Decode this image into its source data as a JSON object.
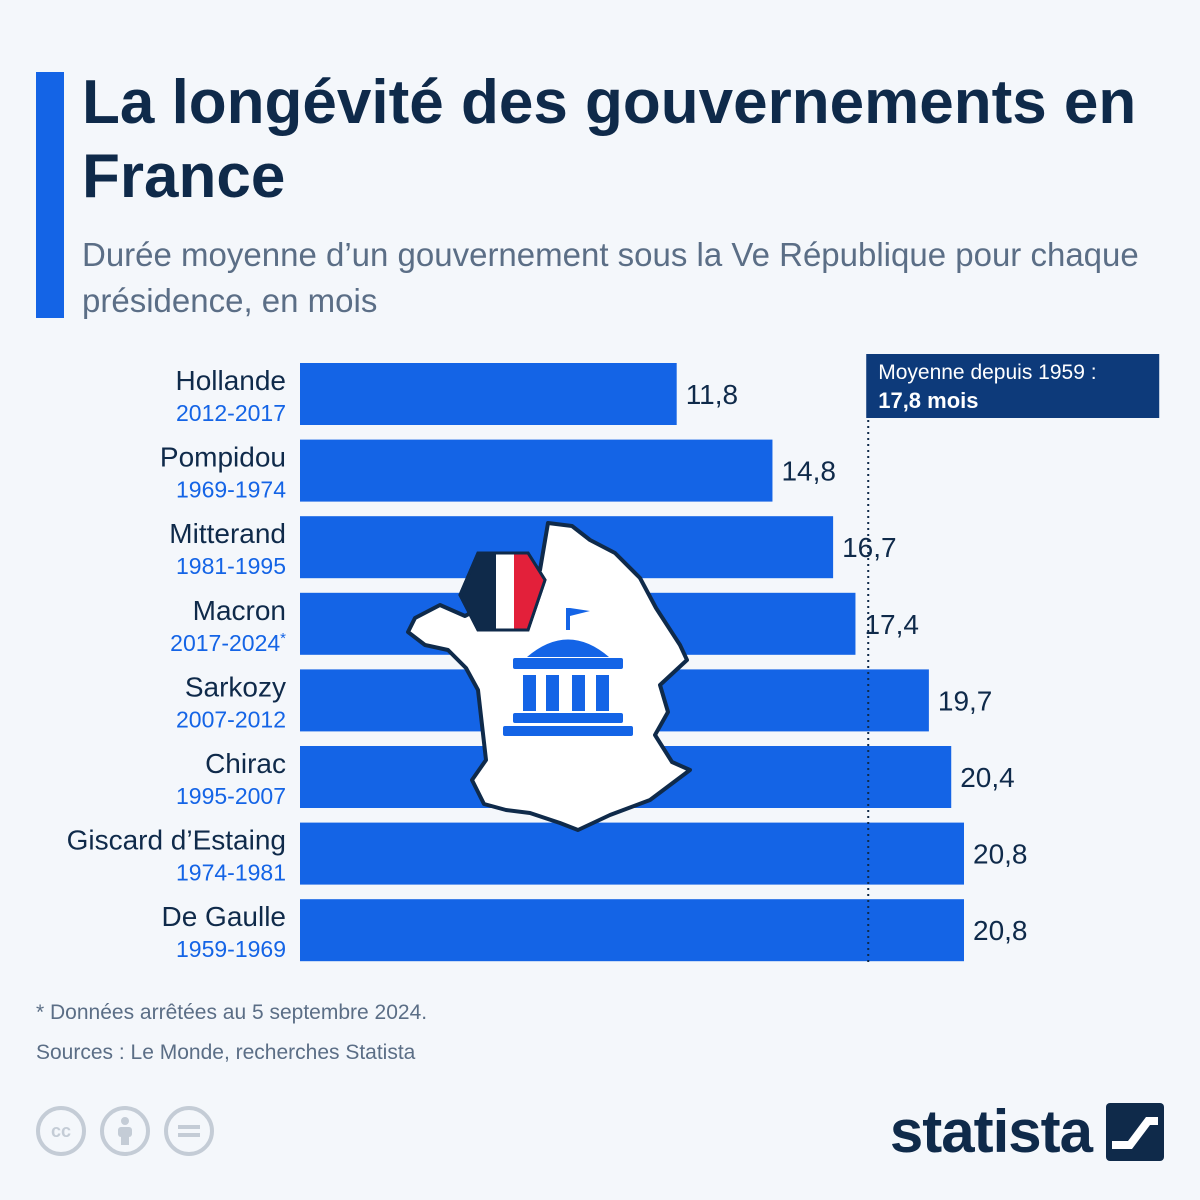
{
  "header": {
    "title": "La longévité des gouvernements en France",
    "subtitle": "Durée moyenne d’un gouvernement sous la Ve République pour chaque présidence, en mois"
  },
  "colors": {
    "bar": "#1464e6",
    "years": "#1464e6",
    "text": "#0f2a4a",
    "avg_box": "#0d3a7a",
    "background": "#f4f7fb"
  },
  "chart_data": {
    "type": "bar",
    "orientation": "horizontal",
    "categories": [
      "Hollande",
      "Pompidou",
      "Mitterand",
      "Macron",
      "Sarkozy",
      "Chirac",
      "Giscard d’Estaing",
      "De Gaulle"
    ],
    "periods": [
      "2012-2017",
      "1969-1974",
      "1981-1995",
      "2017-2024",
      "2007-2012",
      "1995-2007",
      "1974-1981",
      "1959-1969"
    ],
    "period_markers": [
      "",
      "",
      "",
      "*",
      "",
      "",
      "",
      ""
    ],
    "values": [
      11.8,
      14.8,
      16.7,
      17.4,
      19.7,
      20.4,
      20.8,
      20.8
    ],
    "value_labels": [
      "11,8",
      "14,8",
      "16,7",
      "17,4",
      "19,7",
      "20,4",
      "20,8",
      "20,8"
    ],
    "reference_line": {
      "value": 17.8,
      "label_line1": "Moyenne depuis 1959 :",
      "label_line2": "17,8 mois"
    },
    "xlim": [
      0,
      21
    ]
  },
  "illustration": {
    "icon": "france-map-government-building-icon"
  },
  "footer": {
    "footnote": "* Données arrêtées au 5 septembre 2024.",
    "sources": "Sources : Le Monde, recherches Statista",
    "license_icons": [
      "cc",
      "by",
      "nd"
    ],
    "brand": "statista"
  }
}
